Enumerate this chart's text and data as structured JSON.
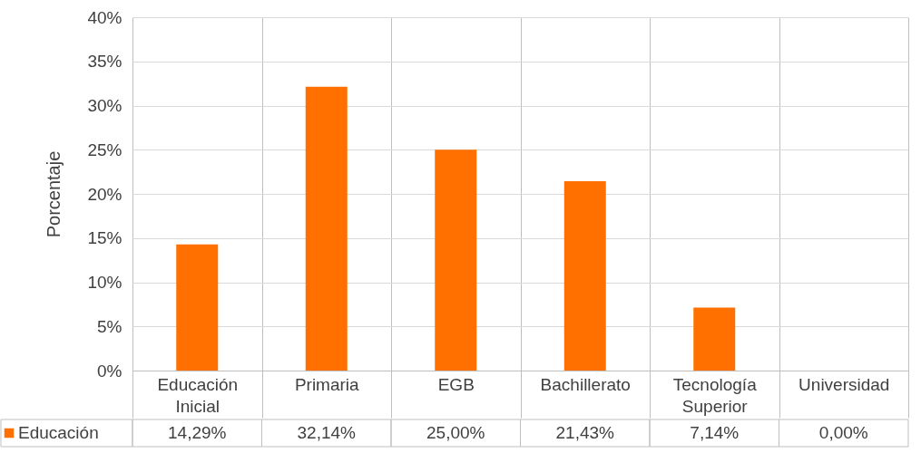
{
  "chart_data": {
    "type": "bar",
    "ylabel": "Porcentaje",
    "categories": [
      "Educación Inicial",
      "Primaria",
      "EGB",
      "Bachillerato",
      "Tecnología Superior",
      "Universidad"
    ],
    "series": [
      {
        "name": "Educación",
        "color": "#ff7000",
        "values": [
          14.29,
          32.14,
          25.0,
          21.43,
          7.14,
          0.0
        ],
        "value_labels": [
          "14,29%",
          "32,14%",
          "25,00%",
          "21,43%",
          "7,14%",
          "0,00%"
        ]
      }
    ],
    "ylim": [
      0,
      40
    ],
    "yticks": [
      {
        "value": 0,
        "label": "0%"
      },
      {
        "value": 5,
        "label": "5%"
      },
      {
        "value": 10,
        "label": "10%"
      },
      {
        "value": 15,
        "label": "15%"
      },
      {
        "value": 20,
        "label": "20%"
      },
      {
        "value": 25,
        "label": "25%"
      },
      {
        "value": 30,
        "label": "30%"
      },
      {
        "value": 35,
        "label": "35%"
      },
      {
        "value": 40,
        "label": "40%"
      }
    ],
    "grid": "y",
    "legend": "bottom left"
  }
}
